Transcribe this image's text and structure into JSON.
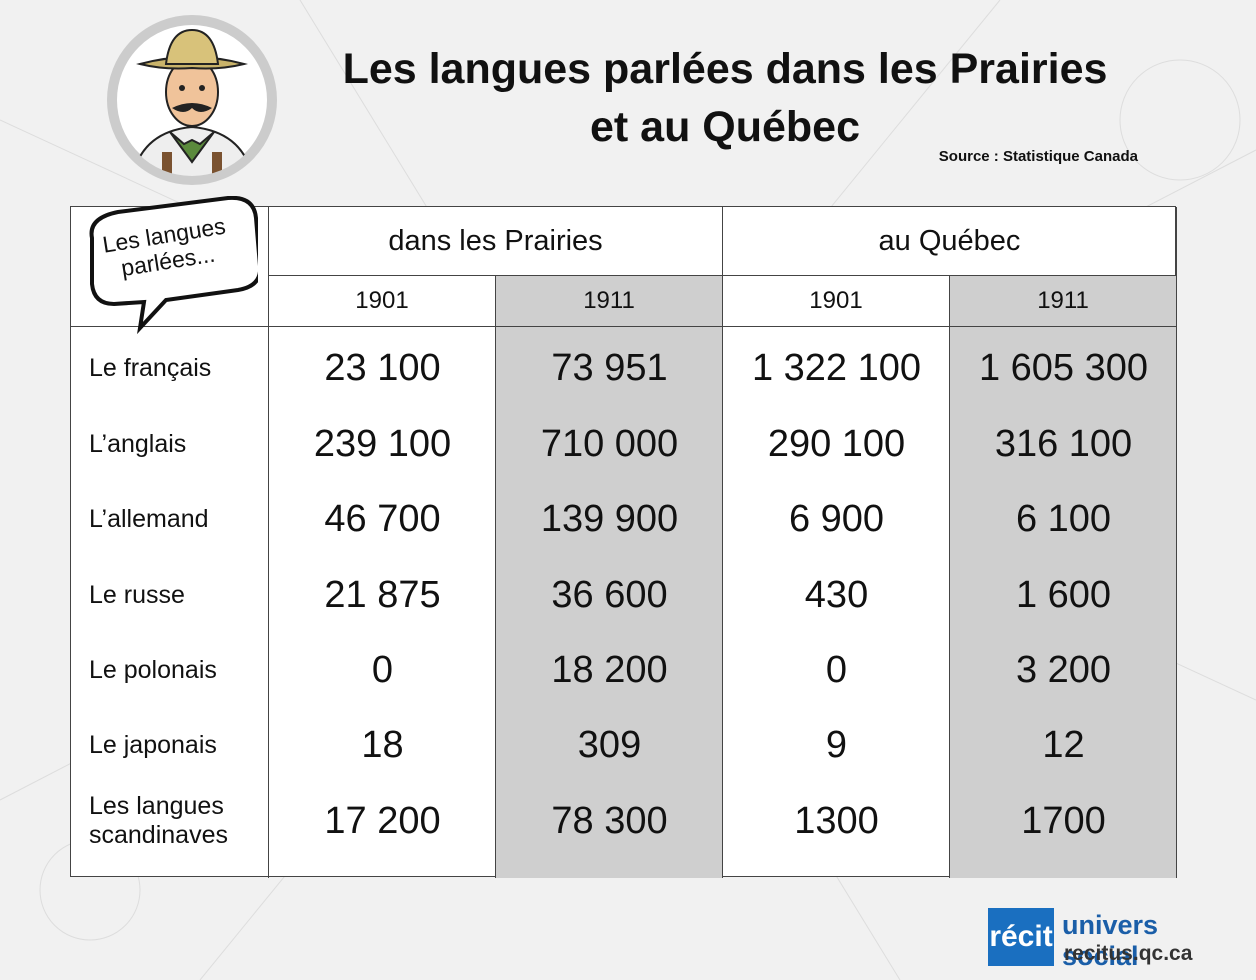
{
  "title_lines": [
    "Les langues parlées dans les Prairies",
    "et au Québec"
  ],
  "source": "Source : Statistique Canada",
  "bubble": "Les langues parlées...",
  "table": {
    "groups": [
      "dans les Prairies",
      "au Québec"
    ],
    "years": [
      "1901",
      "1911",
      "1901",
      "1911"
    ],
    "rows": [
      {
        "label": "Le français",
        "values": [
          "23 100",
          "73 951",
          "1 322 100",
          "1 605 300"
        ]
      },
      {
        "label": "L’anglais",
        "values": [
          "239 100",
          "710 000",
          "290 100",
          "316 100"
        ]
      },
      {
        "label": "L’allemand",
        "values": [
          "46 700",
          "139 900",
          "6 900",
          "6 100"
        ]
      },
      {
        "label": "Le russe",
        "values": [
          "21 875",
          "36 600",
          "430",
          "1 600"
        ]
      },
      {
        "label": "Le polonais",
        "values": [
          "0",
          "18 200",
          "0",
          "3 200"
        ]
      },
      {
        "label": "Le japonais",
        "values": [
          "18",
          "309",
          "9",
          "12"
        ]
      },
      {
        "label": "Les langues scandinaves",
        "values": [
          "17 200",
          "78 300",
          "1300",
          "1700"
        ]
      }
    ]
  },
  "logo": {
    "brand": "récit",
    "name": "univers social",
    "url": "recitus.qc.ca"
  }
}
